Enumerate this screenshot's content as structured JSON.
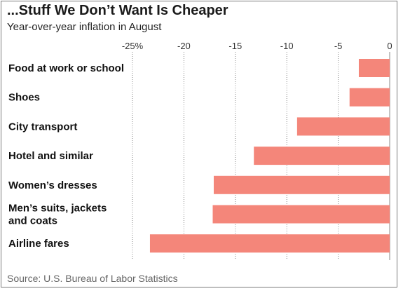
{
  "chart_data": {
    "type": "bar",
    "orientation": "horizontal",
    "title": "...Stuff We Don’t Want Is Cheaper",
    "subtitle": "Year-over-year inflation in August",
    "source": "Source: U.S. Bureau of Labor Statistics",
    "categories": [
      [
        "Food at work or school"
      ],
      [
        "Shoes"
      ],
      [
        "City transport"
      ],
      [
        "Hotel and similar"
      ],
      [
        "Women’s dresses"
      ],
      [
        "Men’s suits, jackets",
        "and coats"
      ],
      [
        "Airline fares"
      ]
    ],
    "values": [
      -3.0,
      -3.9,
      -9.0,
      -13.2,
      -17.1,
      -17.2,
      -23.3
    ],
    "xlim": [
      -25,
      0
    ],
    "xticks": [
      {
        "value": -25,
        "label": "-25%"
      },
      {
        "value": -20,
        "label": "-20"
      },
      {
        "value": -15,
        "label": "-15"
      },
      {
        "value": -10,
        "label": "-10"
      },
      {
        "value": -5,
        "label": "-5"
      },
      {
        "value": 0,
        "label": "0"
      }
    ],
    "grid": true,
    "bar_color": "#f4867a",
    "grid_color": "#8a8a8a"
  }
}
